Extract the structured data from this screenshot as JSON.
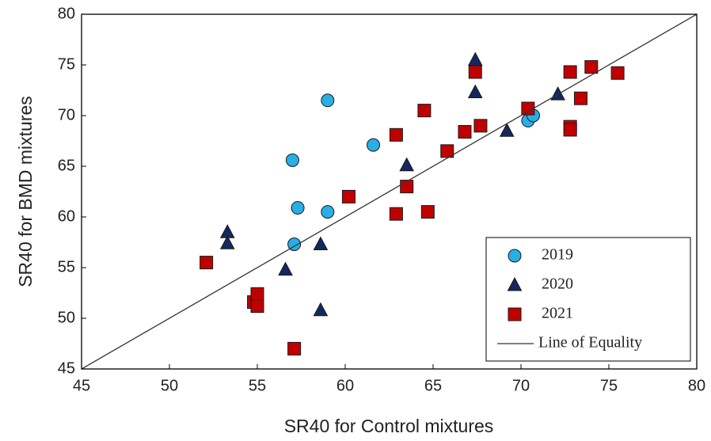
{
  "chart_data": {
    "type": "scatter",
    "xlabel": "SR40 for Control mixtures",
    "ylabel": "SR40 for BMD mixtures",
    "xlim": [
      45,
      80
    ],
    "ylim": [
      45,
      80
    ],
    "xticks": [
      45,
      50,
      55,
      60,
      65,
      70,
      75,
      80
    ],
    "yticks": [
      45,
      50,
      55,
      60,
      65,
      70,
      75,
      80
    ],
    "grid": false,
    "legend": "lower right",
    "series": [
      {
        "name": "2019",
        "marker": "circle",
        "color": "#29aee6",
        "x": [
          59.0,
          57.0,
          57.3,
          59.0,
          57.1,
          61.6,
          70.4,
          70.7
        ],
        "values": [
          71.5,
          65.6,
          60.9,
          60.5,
          57.3,
          67.1,
          69.5,
          70.0
        ]
      },
      {
        "name": "2020",
        "marker": "triangle",
        "color": "#13285e",
        "x": [
          53.3,
          53.3,
          56.6,
          58.6,
          58.6,
          63.5,
          67.4,
          67.4,
          69.2,
          72.1
        ],
        "values": [
          58.5,
          57.4,
          54.8,
          57.3,
          50.8,
          65.1,
          75.5,
          72.3,
          68.5,
          72.1
        ]
      },
      {
        "name": "2021",
        "marker": "square",
        "color": "#c00000",
        "x": [
          52.1,
          54.8,
          55.0,
          55.0,
          57.1,
          60.2,
          62.9,
          62.9,
          63.5,
          64.5,
          64.7,
          65.8,
          66.8,
          67.4,
          67.7,
          70.4,
          72.8,
          72.8,
          72.8,
          73.4,
          74.0,
          75.5
        ],
        "values": [
          55.5,
          51.6,
          52.4,
          51.2,
          47.0,
          62.0,
          68.1,
          60.3,
          63.0,
          70.5,
          60.5,
          66.5,
          68.4,
          74.3,
          69.0,
          70.7,
          74.3,
          68.9,
          68.6,
          71.7,
          74.8,
          74.2
        ]
      },
      {
        "name": "Line of Equality",
        "marker": "line",
        "color": "#333333",
        "x": [
          45,
          80
        ],
        "values": [
          45,
          80
        ]
      }
    ]
  }
}
